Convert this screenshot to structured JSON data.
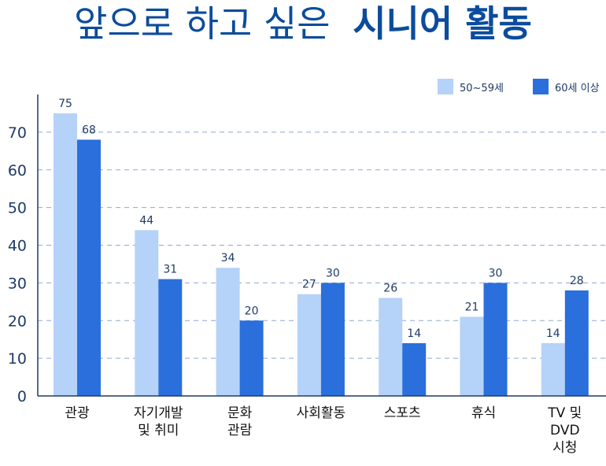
{
  "title": {
    "light": "앞으로 하고 싶은",
    "bold": "시니어 활동"
  },
  "colors": {
    "title": "#0b4c9c",
    "series_50s": "#b5d2f8",
    "series_60s": "#2a6fdb",
    "axis": "#1f3a68",
    "grid": "#8fa9cf",
    "label": "#1f3a68"
  },
  "chart_data": {
    "type": "bar",
    "categories": [
      [
        "관광"
      ],
      [
        "자기개발",
        "및 취미"
      ],
      [
        "문화",
        "관람"
      ],
      [
        "사회활동"
      ],
      [
        "스포츠"
      ],
      [
        "휴식"
      ],
      [
        "TV 및",
        "DVD",
        "시청"
      ]
    ],
    "series": [
      {
        "name": "50~59세",
        "values": [
          75,
          44,
          34,
          27,
          26,
          21,
          14
        ]
      },
      {
        "name": "60세 이상",
        "values": [
          68,
          31,
          20,
          30,
          14,
          30,
          28
        ]
      }
    ],
    "y_ticks": [
      "0",
      "10",
      "20",
      "30",
      "40",
      "50",
      "60",
      "70"
    ],
    "ylim": [
      0,
      80
    ],
    "grid": true,
    "legend_position": "top-right"
  }
}
